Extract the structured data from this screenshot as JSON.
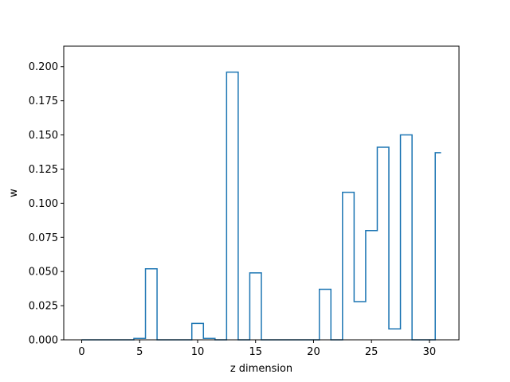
{
  "chart_data": {
    "type": "line",
    "drawstyle": "steps-mid",
    "xlabel": "z dimension",
    "ylabel": "w",
    "xlim": [
      -1.55,
      32.55
    ],
    "ylim": [
      0,
      0.215
    ],
    "xticks": [
      0,
      5,
      10,
      15,
      20,
      25,
      30
    ],
    "yticks": [
      0.0,
      0.025,
      0.05,
      0.075,
      0.1,
      0.125,
      0.15,
      0.175,
      0.2
    ],
    "ytick_labels": [
      "0.000",
      "0.025",
      "0.050",
      "0.075",
      "0.100",
      "0.125",
      "0.150",
      "0.175",
      "0.200"
    ],
    "xtick_labels": [
      "0",
      "5",
      "10",
      "15",
      "20",
      "25",
      "30"
    ],
    "grid": false,
    "line_color": "#1f77b4",
    "x": [
      0,
      1,
      2,
      3,
      4,
      5,
      6,
      7,
      8,
      9,
      10,
      11,
      12,
      13,
      14,
      15,
      16,
      17,
      18,
      19,
      20,
      21,
      22,
      23,
      24,
      25,
      26,
      27,
      28,
      29,
      30,
      31
    ],
    "values": [
      0,
      0,
      0,
      0,
      0,
      0.001,
      0.052,
      0,
      0,
      0,
      0.012,
      0.001,
      0,
      0.196,
      0,
      0.049,
      0,
      0,
      0,
      0,
      0,
      0.037,
      0,
      0.108,
      0.028,
      0.08,
      0.141,
      0.008,
      0.15,
      0,
      0,
      0.137
    ]
  }
}
